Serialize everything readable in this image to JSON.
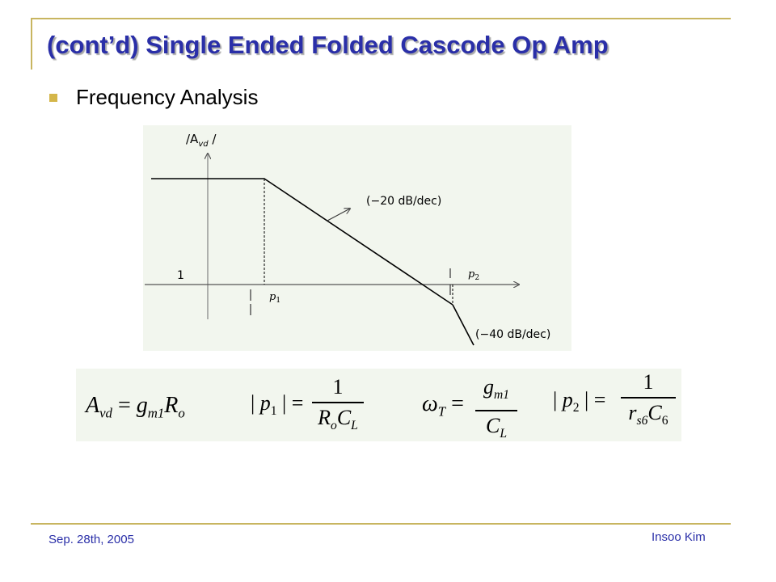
{
  "slide": {
    "title": "(cont’d) Single Ended Folded Cascode Op Amp",
    "bullet": "Frequency Analysis"
  },
  "graph": {
    "y_axis_label_prefix": "/A",
    "y_axis_label_sub": "vd",
    "y_axis_label_suffix": " /",
    "unity_label": "1",
    "pole1_label": "p",
    "pole1_sub": "1",
    "pole2_label": "p",
    "pole2_sub": "2",
    "slope1_label": "(−20 dB/dec)",
    "slope2_label": "(−40 dB/dec)"
  },
  "equations": {
    "gain": {
      "lhs": "A",
      "lhs_sub": "vd",
      "eq": "=",
      "rhs_g": "g",
      "rhs_g_sub": "m1",
      "rhs_r": "R",
      "rhs_r_sub": "o"
    },
    "pole1": {
      "lhs_open": "|",
      "lhs": "p",
      "lhs_sub": "1",
      "lhs_close": "|",
      "eq": "=",
      "num": "1",
      "den_r": "R",
      "den_r_sub": "o",
      "den_c": "C",
      "den_c_sub": "L"
    },
    "omega_t": {
      "lhs": "ω",
      "lhs_sub": "T",
      "eq": "=",
      "num": "g",
      "num_sub": "m1",
      "den": "C",
      "den_sub": "L"
    },
    "pole2": {
      "lhs_open": "|",
      "lhs": "p",
      "lhs_sub": "2",
      "lhs_close": "|",
      "eq": "=",
      "num": "1",
      "den_r": "r",
      "den_r_sub": "s6",
      "den_c": "C",
      "den_c_sub": "6"
    }
  },
  "footer": {
    "date": "Sep. 28th, 2005",
    "author": "Insoo Kim"
  },
  "colors": {
    "title": "#2a2fa8",
    "accent_gold": "#c8b560",
    "panel_bg": "#f2f6ee"
  }
}
